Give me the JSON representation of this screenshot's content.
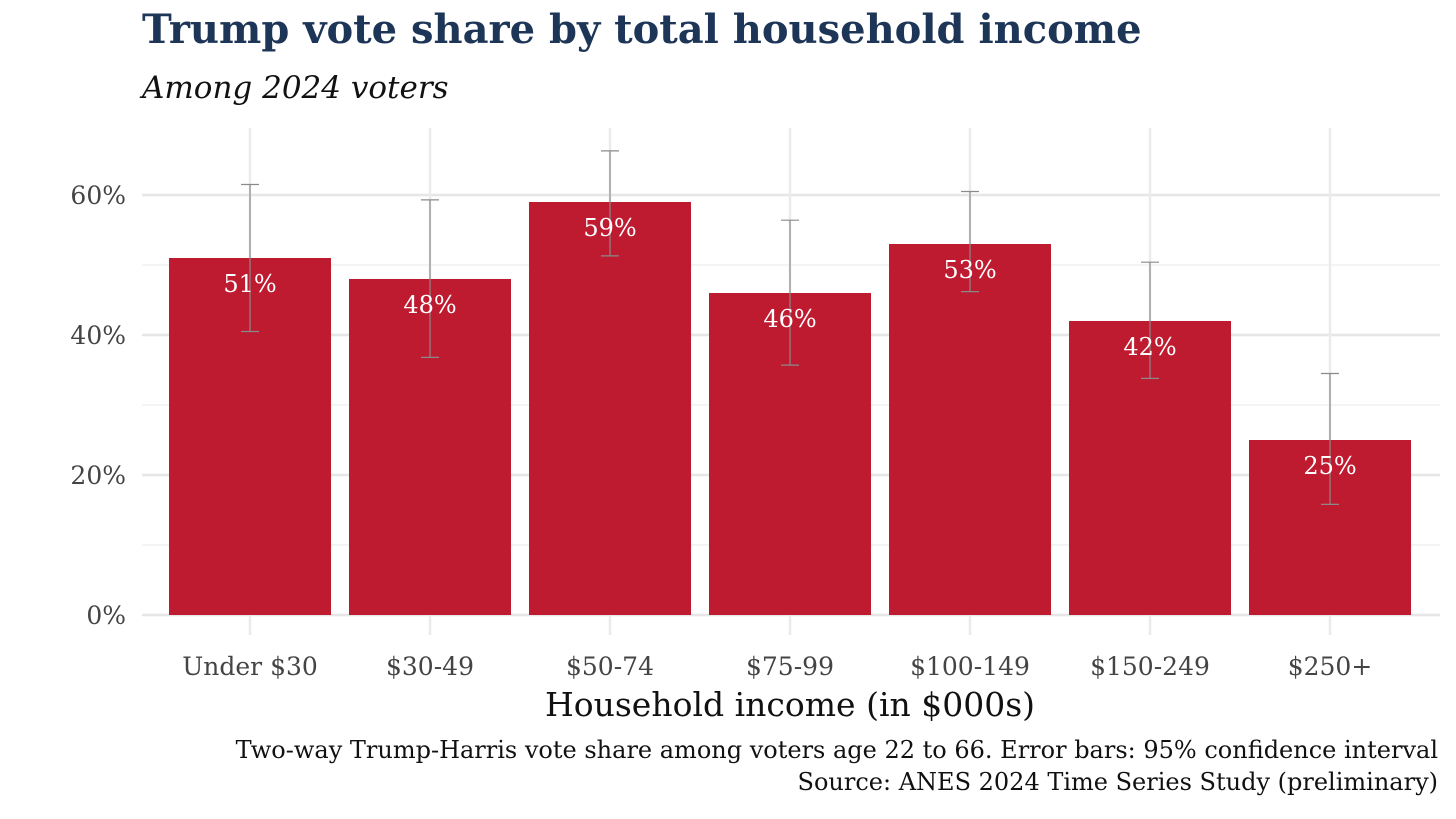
{
  "chart_data": {
    "type": "bar",
    "title": "Trump vote share by total household income",
    "subtitle": "Among 2024 voters",
    "xlabel": "Household income (in $000s)",
    "ylabel": "",
    "categories": [
      "Under $30",
      "$30-49",
      "$50-74",
      "$75-99",
      "$100-149",
      "$150-249",
      "$250+"
    ],
    "values": [
      51,
      48,
      59,
      46,
      53,
      42,
      25
    ],
    "value_labels": [
      "51%",
      "48%",
      "59%",
      "46%",
      "53%",
      "42%",
      "25%"
    ],
    "error_low": [
      40.5,
      36.8,
      51.3,
      35.7,
      46.2,
      33.8,
      15.8
    ],
    "error_high": [
      61.5,
      59.3,
      66.3,
      56.4,
      60.5,
      50.4,
      34.5
    ],
    "ylim": [
      0,
      69
    ],
    "yticks": [
      0,
      20,
      40,
      60
    ],
    "ytick_labels": [
      "0%",
      "20%",
      "40%",
      "60%"
    ],
    "grid": true,
    "bar_color": "#be1a30",
    "caption_line1": "Two-way Trump-Harris vote share among voters age 22 to 66. Error bars: 95% confidence interval",
    "caption_line2": "Source: ANES 2024 Time Series Study (preliminary)"
  }
}
